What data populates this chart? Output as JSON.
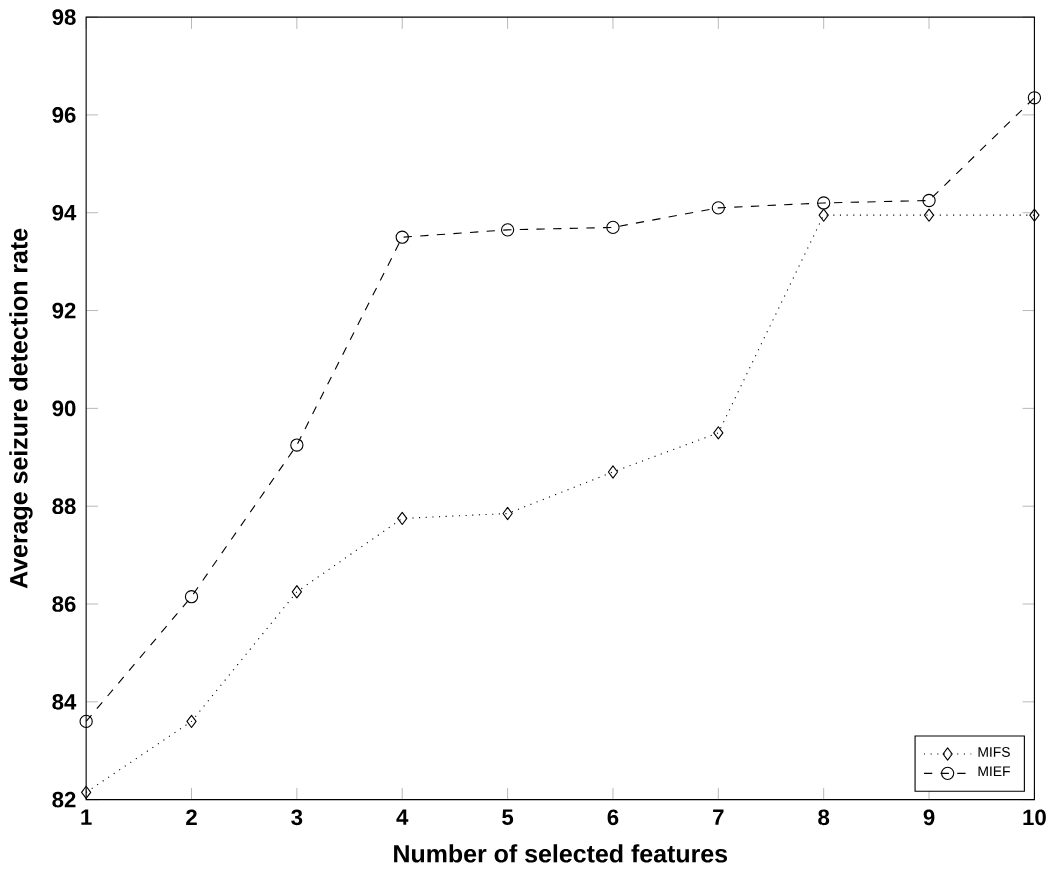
{
  "chart_data": {
    "type": "line",
    "xlabel": "Number of selected features",
    "ylabel": "Average seizure detection rate",
    "x": [
      1,
      2,
      3,
      4,
      5,
      6,
      7,
      8,
      9,
      10
    ],
    "series": [
      {
        "name": "MIFS",
        "color": "#000000",
        "marker": "diamond",
        "line_style": "dotted",
        "values": [
          82.15,
          83.6,
          86.25,
          87.75,
          87.85,
          88.7,
          89.5,
          93.95,
          93.95,
          93.95
        ]
      },
      {
        "name": "MIEF",
        "color": "#000000",
        "marker": "circle",
        "line_style": "dashed",
        "values": [
          83.6,
          86.15,
          89.25,
          93.5,
          93.65,
          93.7,
          94.1,
          94.2,
          94.25,
          96.35
        ]
      }
    ],
    "xlim": [
      1,
      10
    ],
    "ylim": [
      82,
      98
    ],
    "xticks": [
      1,
      2,
      3,
      4,
      5,
      6,
      7,
      8,
      9,
      10
    ],
    "yticks": [
      82,
      84,
      86,
      88,
      90,
      92,
      94,
      96,
      98
    ],
    "legend": "bottom right",
    "grid": false
  }
}
